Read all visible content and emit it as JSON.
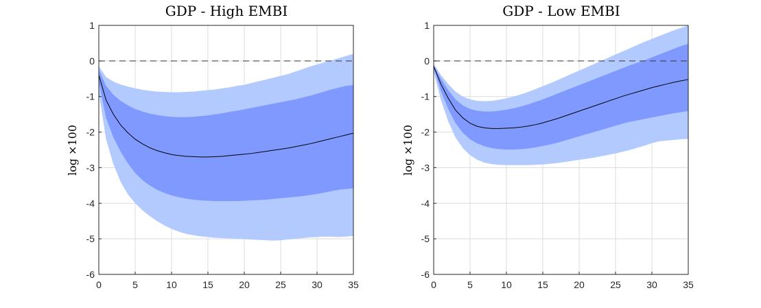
{
  "chart_data": [
    {
      "type": "area",
      "title": "GDP - High EMBI",
      "xlabel": "",
      "ylabel": "log ×100",
      "xlim": [
        0,
        35
      ],
      "ylim": [
        -6,
        1
      ],
      "xticks": [
        0,
        5,
        10,
        15,
        20,
        25,
        30,
        35
      ],
      "yticks": [
        1,
        0,
        -1,
        -2,
        -3,
        -4,
        -5,
        -6
      ],
      "grid": true,
      "reference_line": 0,
      "x": [
        0,
        1,
        2,
        3,
        4,
        5,
        6,
        7,
        8,
        9,
        10,
        11,
        12,
        13,
        14,
        15,
        16,
        17,
        18,
        19,
        20,
        21,
        22,
        23,
        24,
        25,
        26,
        27,
        28,
        29,
        30,
        31,
        32,
        33,
        34,
        35
      ],
      "colors": {
        "outer_band": "#b3caff",
        "inner_band": "#8099ff",
        "median": "#000000",
        "zero_line": "#333333"
      },
      "series": [
        {
          "name": "median",
          "values": [
            -0.4,
            -1.1,
            -1.5,
            -1.8,
            -2.02,
            -2.2,
            -2.33,
            -2.44,
            -2.52,
            -2.58,
            -2.63,
            -2.66,
            -2.68,
            -2.69,
            -2.7,
            -2.7,
            -2.69,
            -2.68,
            -2.66,
            -2.64,
            -2.62,
            -2.6,
            -2.57,
            -2.54,
            -2.51,
            -2.48,
            -2.45,
            -2.41,
            -2.37,
            -2.33,
            -2.28,
            -2.23,
            -2.18,
            -2.13,
            -2.08,
            -2.03
          ]
        },
        {
          "name": "inner_upper",
          "values": [
            -0.25,
            -0.7,
            -0.95,
            -1.12,
            -1.25,
            -1.35,
            -1.42,
            -1.48,
            -1.52,
            -1.55,
            -1.57,
            -1.58,
            -1.58,
            -1.57,
            -1.55,
            -1.53,
            -1.5,
            -1.47,
            -1.43,
            -1.4,
            -1.36,
            -1.32,
            -1.28,
            -1.24,
            -1.2,
            -1.16,
            -1.12,
            -1.08,
            -1.03,
            -0.98,
            -0.92,
            -0.86,
            -0.8,
            -0.75,
            -0.7,
            -0.68
          ]
        },
        {
          "name": "inner_lower",
          "values": [
            -0.6,
            -1.6,
            -2.15,
            -2.55,
            -2.88,
            -3.15,
            -3.35,
            -3.5,
            -3.62,
            -3.71,
            -3.78,
            -3.83,
            -3.87,
            -3.9,
            -3.92,
            -3.93,
            -3.94,
            -3.94,
            -3.94,
            -3.94,
            -3.93,
            -3.92,
            -3.91,
            -3.9,
            -3.88,
            -3.86,
            -3.84,
            -3.82,
            -3.8,
            -3.77,
            -3.74,
            -3.7,
            -3.66,
            -3.62,
            -3.6,
            -3.58
          ]
        },
        {
          "name": "outer_upper",
          "values": [
            -0.15,
            -0.45,
            -0.58,
            -0.66,
            -0.72,
            -0.77,
            -0.81,
            -0.84,
            -0.86,
            -0.87,
            -0.88,
            -0.88,
            -0.87,
            -0.86,
            -0.84,
            -0.82,
            -0.8,
            -0.77,
            -0.74,
            -0.7,
            -0.67,
            -0.62,
            -0.57,
            -0.52,
            -0.47,
            -0.42,
            -0.37,
            -0.3,
            -0.23,
            -0.16,
            -0.1,
            -0.04,
            0.02,
            0.08,
            0.14,
            0.2
          ]
        },
        {
          "name": "outer_lower",
          "values": [
            -0.9,
            -2.2,
            -2.9,
            -3.4,
            -3.75,
            -4.0,
            -4.2,
            -4.36,
            -4.5,
            -4.62,
            -4.72,
            -4.8,
            -4.86,
            -4.9,
            -4.93,
            -4.95,
            -4.97,
            -4.98,
            -4.99,
            -5.0,
            -5.01,
            -5.02,
            -5.03,
            -5.04,
            -5.05,
            -5.04,
            -5.02,
            -5.0,
            -4.98,
            -4.96,
            -4.95,
            -4.94,
            -4.94,
            -4.95,
            -4.94,
            -4.92
          ]
        }
      ]
    },
    {
      "type": "area",
      "title": "GDP - Low EMBI",
      "xlabel": "",
      "ylabel": "log ×100",
      "xlim": [
        0,
        35
      ],
      "ylim": [
        -6,
        1
      ],
      "xticks": [
        0,
        5,
        10,
        15,
        20,
        25,
        30,
        35
      ],
      "yticks": [
        1,
        0,
        -1,
        -2,
        -3,
        -4,
        -5,
        -6
      ],
      "grid": true,
      "reference_line": 0,
      "x": [
        0,
        1,
        2,
        3,
        4,
        5,
        6,
        7,
        8,
        9,
        10,
        11,
        12,
        13,
        14,
        15,
        16,
        17,
        18,
        19,
        20,
        21,
        22,
        23,
        24,
        25,
        26,
        27,
        28,
        29,
        30,
        31,
        32,
        33,
        34,
        35
      ],
      "colors": {
        "outer_band": "#b3caff",
        "inner_band": "#8099ff",
        "median": "#000000",
        "zero_line": "#333333"
      },
      "series": [
        {
          "name": "median",
          "values": [
            -0.15,
            -0.65,
            -1.05,
            -1.38,
            -1.6,
            -1.75,
            -1.84,
            -1.88,
            -1.9,
            -1.9,
            -1.89,
            -1.88,
            -1.86,
            -1.83,
            -1.79,
            -1.74,
            -1.68,
            -1.62,
            -1.55,
            -1.48,
            -1.41,
            -1.34,
            -1.27,
            -1.2,
            -1.13,
            -1.06,
            -0.99,
            -0.93,
            -0.87,
            -0.81,
            -0.75,
            -0.7,
            -0.65,
            -0.6,
            -0.56,
            -0.52
          ]
        },
        {
          "name": "inner_upper",
          "values": [
            -0.12,
            -0.5,
            -0.82,
            -1.08,
            -1.25,
            -1.35,
            -1.4,
            -1.42,
            -1.42,
            -1.4,
            -1.37,
            -1.33,
            -1.28,
            -1.22,
            -1.15,
            -1.08,
            -1.0,
            -0.92,
            -0.84,
            -0.76,
            -0.68,
            -0.6,
            -0.52,
            -0.44,
            -0.36,
            -0.28,
            -0.2,
            -0.12,
            -0.05,
            0.02,
            0.1,
            0.18,
            0.26,
            0.34,
            0.42,
            0.48
          ]
        },
        {
          "name": "inner_lower",
          "values": [
            -0.2,
            -0.85,
            -1.35,
            -1.75,
            -2.02,
            -2.2,
            -2.32,
            -2.4,
            -2.45,
            -2.48,
            -2.49,
            -2.49,
            -2.48,
            -2.46,
            -2.43,
            -2.39,
            -2.35,
            -2.3,
            -2.24,
            -2.18,
            -2.12,
            -2.06,
            -2.0,
            -1.94,
            -1.88,
            -1.82,
            -1.76,
            -1.71,
            -1.67,
            -1.63,
            -1.59,
            -1.55,
            -1.51,
            -1.47,
            -1.44,
            -1.41
          ]
        },
        {
          "name": "outer_upper",
          "values": [
            -0.08,
            -0.4,
            -0.65,
            -0.86,
            -1.0,
            -1.08,
            -1.12,
            -1.13,
            -1.12,
            -1.09,
            -1.05,
            -1.0,
            -0.94,
            -0.87,
            -0.79,
            -0.71,
            -0.63,
            -0.54,
            -0.45,
            -0.36,
            -0.27,
            -0.18,
            -0.09,
            0.0,
            0.09,
            0.18,
            0.27,
            0.36,
            0.45,
            0.54,
            0.62,
            0.7,
            0.78,
            0.86,
            0.93,
            1.0
          ]
        },
        {
          "name": "outer_lower",
          "values": [
            -0.3,
            -1.1,
            -1.7,
            -2.15,
            -2.45,
            -2.65,
            -2.78,
            -2.86,
            -2.9,
            -2.92,
            -2.93,
            -2.93,
            -2.93,
            -2.93,
            -2.92,
            -2.91,
            -2.89,
            -2.87,
            -2.84,
            -2.81,
            -2.78,
            -2.75,
            -2.72,
            -2.68,
            -2.64,
            -2.6,
            -2.55,
            -2.5,
            -2.44,
            -2.38,
            -2.31,
            -2.26,
            -2.24,
            -2.22,
            -2.2,
            -2.19
          ]
        }
      ]
    }
  ]
}
